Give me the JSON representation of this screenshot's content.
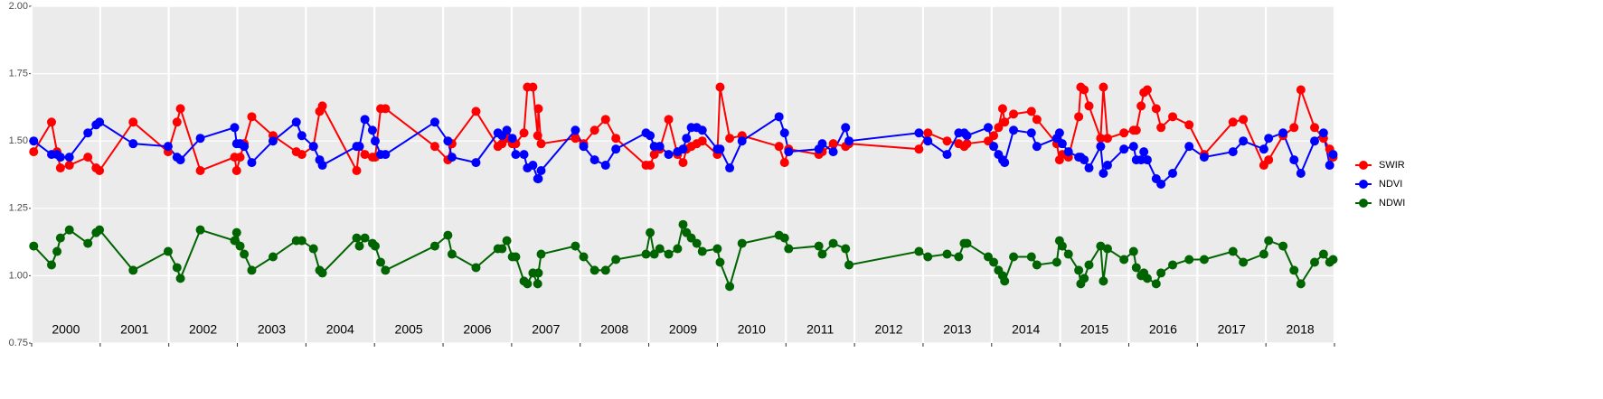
{
  "chart_data": {
    "type": "line",
    "x": [
      2000.03,
      2000.29,
      2000.37,
      2000.42,
      2000.55,
      2000.82,
      2000.94,
      2000.99,
      2001.48,
      2001.99,
      2002.12,
      2002.17,
      2002.46,
      2002.96,
      2002.99,
      2003.04,
      2003.1,
      2003.21,
      2003.52,
      2003.86,
      2003.94,
      2004.11,
      2004.2,
      2004.24,
      2004.74,
      2004.78,
      2004.86,
      2004.97,
      2005.01,
      2005.09,
      2005.16,
      2005.88,
      2006.07,
      2006.13,
      2006.48,
      2006.8,
      2006.86,
      2006.93,
      2007.01,
      2007.06,
      2007.18,
      2007.23,
      2007.31,
      2007.38,
      2007.39,
      2007.43,
      2007.93,
      2008.05,
      2008.21,
      2008.37,
      2008.52,
      2008.96,
      2009.02,
      2009.08,
      2009.16,
      2009.29,
      2009.42,
      2009.5,
      2009.55,
      2009.62,
      2009.7,
      2009.78,
      2010.0,
      2010.04,
      2010.18,
      2010.36,
      2010.9,
      2010.98,
      2011.04,
      2011.48,
      2011.53,
      2011.69,
      2011.87,
      2011.92,
      2012.94,
      2013.07,
      2013.35,
      2013.52,
      2013.6,
      2013.64,
      2013.95,
      2014.03,
      2014.1,
      2014.16,
      2014.19,
      2014.32,
      2014.58,
      2014.66,
      2014.95,
      2014.99,
      2015.03,
      2015.12,
      2015.27,
      2015.3,
      2015.35,
      2015.42,
      2015.59,
      2015.63,
      2015.69,
      2015.93,
      2016.07,
      2016.11,
      2016.18,
      2016.22,
      2016.27,
      2016.4,
      2016.47,
      2016.64,
      2016.88,
      2017.1,
      2017.52,
      2017.67,
      2017.97,
      2018.04,
      2018.25,
      2018.41,
      2018.51,
      2018.71,
      2018.84,
      2018.93,
      2018.98
    ],
    "series": [
      {
        "name": "SWIR",
        "color": "#ff0000",
        "values": [
          1.46,
          1.57,
          1.46,
          1.4,
          1.41,
          1.44,
          1.4,
          1.39,
          1.57,
          1.46,
          1.57,
          1.62,
          1.39,
          1.44,
          1.39,
          1.44,
          1.49,
          1.59,
          1.52,
          1.46,
          1.45,
          1.48,
          1.61,
          1.63,
          1.39,
          1.48,
          1.45,
          1.44,
          1.44,
          1.62,
          1.62,
          1.48,
          1.43,
          1.49,
          1.61,
          1.48,
          1.49,
          1.51,
          1.49,
          1.49,
          1.53,
          1.7,
          1.7,
          1.52,
          1.62,
          1.49,
          1.51,
          1.49,
          1.54,
          1.58,
          1.51,
          1.41,
          1.41,
          1.45,
          1.47,
          1.58,
          1.45,
          1.42,
          1.47,
          1.48,
          1.49,
          1.5,
          1.45,
          1.7,
          1.51,
          1.52,
          1.48,
          1.42,
          1.47,
          1.45,
          1.46,
          1.49,
          1.48,
          1.49,
          1.47,
          1.53,
          1.5,
          1.49,
          1.48,
          1.49,
          1.5,
          1.52,
          1.55,
          1.62,
          1.57,
          1.6,
          1.61,
          1.58,
          1.49,
          1.43,
          1.45,
          1.44,
          1.59,
          1.7,
          1.69,
          1.63,
          1.51,
          1.7,
          1.51,
          1.53,
          1.54,
          1.54,
          1.63,
          1.68,
          1.69,
          1.62,
          1.55,
          1.59,
          1.56,
          1.45,
          1.57,
          1.58,
          1.41,
          1.43,
          1.52,
          1.55,
          1.69,
          1.55,
          1.51,
          1.47,
          1.44
        ]
      },
      {
        "name": "NDVI",
        "color": "#0000ff",
        "values": [
          1.5,
          1.45,
          1.45,
          1.44,
          1.44,
          1.53,
          1.56,
          1.57,
          1.49,
          1.48,
          1.44,
          1.43,
          1.51,
          1.55,
          1.49,
          1.49,
          1.48,
          1.42,
          1.5,
          1.57,
          1.52,
          1.48,
          1.43,
          1.41,
          1.48,
          1.48,
          1.58,
          1.54,
          1.5,
          1.45,
          1.45,
          1.57,
          1.5,
          1.44,
          1.42,
          1.53,
          1.52,
          1.54,
          1.51,
          1.45,
          1.45,
          1.4,
          1.41,
          1.36,
          1.36,
          1.39,
          1.54,
          1.48,
          1.43,
          1.41,
          1.47,
          1.53,
          1.52,
          1.48,
          1.48,
          1.45,
          1.46,
          1.47,
          1.51,
          1.55,
          1.55,
          1.54,
          1.47,
          1.47,
          1.4,
          1.5,
          1.59,
          1.53,
          1.46,
          1.47,
          1.49,
          1.46,
          1.55,
          1.5,
          1.53,
          1.5,
          1.45,
          1.53,
          1.53,
          1.52,
          1.55,
          1.48,
          1.45,
          1.43,
          1.42,
          1.54,
          1.53,
          1.48,
          1.51,
          1.53,
          1.49,
          1.46,
          1.44,
          1.44,
          1.43,
          1.4,
          1.48,
          1.38,
          1.41,
          1.47,
          1.48,
          1.43,
          1.43,
          1.46,
          1.43,
          1.36,
          1.34,
          1.38,
          1.48,
          1.44,
          1.46,
          1.5,
          1.47,
          1.51,
          1.53,
          1.43,
          1.38,
          1.5,
          1.53,
          1.41,
          1.45
        ]
      },
      {
        "name": "NDWI",
        "color": "#006400",
        "values": [
          1.11,
          1.04,
          1.09,
          1.14,
          1.17,
          1.12,
          1.16,
          1.17,
          1.02,
          1.09,
          1.03,
          0.99,
          1.17,
          1.13,
          1.16,
          1.11,
          1.08,
          1.02,
          1.07,
          1.13,
          1.13,
          1.1,
          1.02,
          1.01,
          1.14,
          1.11,
          1.14,
          1.12,
          1.11,
          1.05,
          1.02,
          1.11,
          1.15,
          1.08,
          1.03,
          1.1,
          1.1,
          1.13,
          1.07,
          1.07,
          0.98,
          0.97,
          1.01,
          0.97,
          1.01,
          1.08,
          1.11,
          1.07,
          1.02,
          1.02,
          1.06,
          1.08,
          1.16,
          1.08,
          1.1,
          1.08,
          1.1,
          1.19,
          1.16,
          1.14,
          1.12,
          1.09,
          1.1,
          1.05,
          0.96,
          1.12,
          1.15,
          1.14,
          1.1,
          1.11,
          1.08,
          1.12,
          1.1,
          1.04,
          1.09,
          1.07,
          1.08,
          1.07,
          1.12,
          1.12,
          1.07,
          1.05,
          1.02,
          1.0,
          0.98,
          1.07,
          1.07,
          1.04,
          1.05,
          1.13,
          1.11,
          1.08,
          1.02,
          0.97,
          0.99,
          1.04,
          1.11,
          0.98,
          1.1,
          1.06,
          1.09,
          1.03,
          1.0,
          1.01,
          0.99,
          0.97,
          1.01,
          1.04,
          1.06,
          1.06,
          1.09,
          1.05,
          1.08,
          1.13,
          1.11,
          1.02,
          0.97,
          1.05,
          1.08,
          1.05,
          1.06
        ]
      }
    ],
    "xlim": [
      2000,
      2019
    ],
    "xgrid": [
      2000,
      2001,
      2002,
      2003,
      2004,
      2005,
      2006,
      2007,
      2008,
      2009,
      2010,
      2011,
      2012,
      2013,
      2014,
      2015,
      2016,
      2017,
      2018,
      2019
    ],
    "xticks": [
      {
        "value": 2000.5,
        "label": "2000"
      },
      {
        "value": 2001.5,
        "label": "2001"
      },
      {
        "value": 2002.5,
        "label": "2002"
      },
      {
        "value": 2003.5,
        "label": "2003"
      },
      {
        "value": 2004.5,
        "label": "2004"
      },
      {
        "value": 2005.5,
        "label": "2005"
      },
      {
        "value": 2006.5,
        "label": "2006"
      },
      {
        "value": 2007.5,
        "label": "2007"
      },
      {
        "value": 2008.5,
        "label": "2008"
      },
      {
        "value": 2009.5,
        "label": "2009"
      },
      {
        "value": 2010.5,
        "label": "2010"
      },
      {
        "value": 2011.5,
        "label": "2011"
      },
      {
        "value": 2012.5,
        "label": "2012"
      },
      {
        "value": 2013.5,
        "label": "2013"
      },
      {
        "value": 2014.5,
        "label": "2014"
      },
      {
        "value": 2015.5,
        "label": "2015"
      },
      {
        "value": 2016.5,
        "label": "2016"
      },
      {
        "value": 2017.5,
        "label": "2017"
      },
      {
        "value": 2018.5,
        "label": "2018"
      }
    ],
    "ylim": [
      0.75,
      2.0
    ],
    "yticks": [
      {
        "value": 0.75,
        "label": "0.75"
      },
      {
        "value": 1.0,
        "label": "1.00"
      },
      {
        "value": 1.25,
        "label": "1.25"
      },
      {
        "value": 1.5,
        "label": "1.50"
      },
      {
        "value": 1.75,
        "label": "1.75"
      },
      {
        "value": 2.0,
        "label": "2.00"
      }
    ],
    "grid": true,
    "legend": "right"
  }
}
